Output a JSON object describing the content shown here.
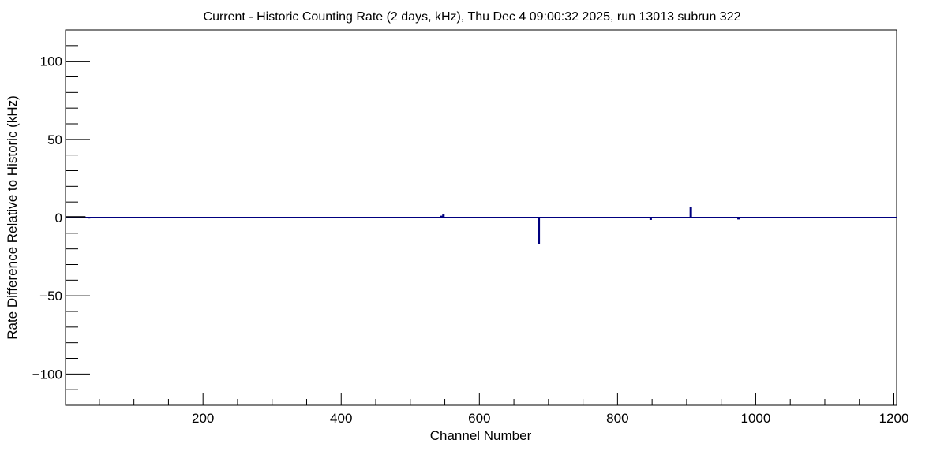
{
  "chart_data": {
    "type": "line",
    "title": "Current - Historic Counting Rate (2 days, kHz), Thu Dec  4 09:00:32 2025, run 13013 subrun 322",
    "xlabel": "Channel Number",
    "ylabel": "Rate Difference Relative to Historic (kHz)",
    "xlim": [
      1,
      1204
    ],
    "ylim": [
      -120,
      120
    ],
    "x_ticks": [
      200,
      400,
      600,
      800,
      1000,
      1200
    ],
    "x_tick_labels": [
      "200",
      "400",
      "600",
      "800",
      "1000",
      "1200"
    ],
    "y_ticks": [
      -100,
      -50,
      0,
      50,
      100
    ],
    "y_tick_labels": [
      "−100",
      "−50",
      "0",
      "50",
      "100"
    ],
    "grid": false,
    "line_color": "#00007f",
    "series": [
      {
        "baseline": 0,
        "segments": [
          [
            1,
            30,
            0.0
          ]
        ],
        "points": [
          [
            35,
            -0.6
          ],
          [
            50,
            -0.4
          ],
          [
            65,
            -0.5
          ],
          [
            80,
            -0.3
          ],
          [
            95,
            -0.4
          ],
          [
            110,
            -0.5
          ],
          [
            140,
            -0.4
          ],
          [
            160,
            -0.5
          ],
          [
            185,
            -0.4
          ],
          [
            200,
            -0.3
          ],
          [
            230,
            -0.5
          ],
          [
            260,
            -0.4
          ],
          [
            300,
            -0.5
          ],
          [
            330,
            -0.4
          ],
          [
            360,
            -0.5
          ],
          [
            390,
            -0.4
          ],
          [
            420,
            -0.5
          ],
          [
            460,
            -0.4
          ],
          [
            500,
            -0.5
          ],
          [
            530,
            -0.4
          ],
          [
            545,
            1.2
          ],
          [
            548,
            2.0
          ],
          [
            560,
            -0.5
          ],
          [
            590,
            -0.4
          ],
          [
            620,
            -0.5
          ],
          [
            650,
            -0.4
          ],
          [
            670,
            -0.5
          ],
          [
            686,
            -17.0
          ],
          [
            700,
            -0.4
          ],
          [
            730,
            -0.4
          ],
          [
            760,
            -0.5
          ],
          [
            790,
            -0.4
          ],
          [
            820,
            -0.5
          ],
          [
            848,
            -1.5
          ],
          [
            860,
            -0.4
          ],
          [
            880,
            -0.5
          ],
          [
            906,
            7.0
          ],
          [
            920,
            -0.4
          ],
          [
            940,
            -0.5
          ],
          [
            975,
            -1.2
          ],
          [
            990,
            -0.5
          ],
          [
            1020,
            -0.4
          ],
          [
            1050,
            -0.5
          ],
          [
            1080,
            -0.4
          ],
          [
            1110,
            -0.5
          ],
          [
            1140,
            -0.4
          ],
          [
            1170,
            -0.5
          ],
          [
            1195,
            -0.4
          ]
        ]
      }
    ]
  }
}
